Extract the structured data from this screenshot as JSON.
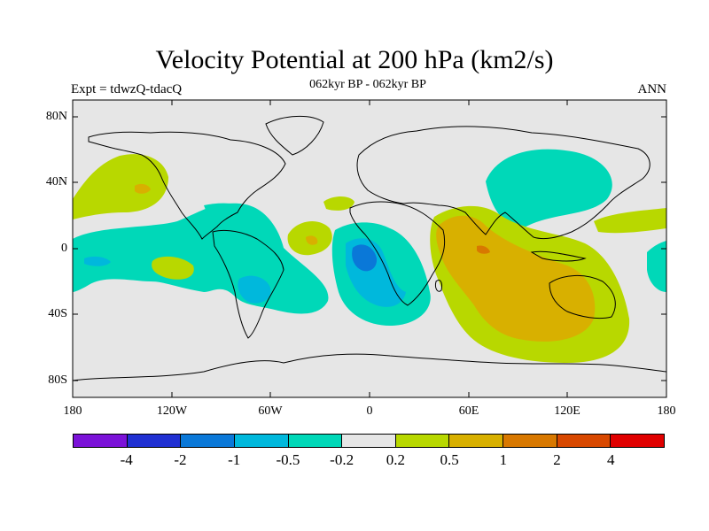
{
  "title": "Velocity Potential at 200 hPa (km2/s)",
  "subtitle": "062kyr BP - 062kyr BP",
  "expt": "Expt = tdwzQ-tdacQ",
  "season": "ANN",
  "lat_ticks": [
    "80N",
    "40N",
    "0",
    "40S",
    "80S"
  ],
  "lon_ticks": [
    "180",
    "120W",
    "60W",
    "0",
    "60E",
    "120E",
    "180"
  ],
  "colorbar": {
    "colors": [
      "#7b12d8",
      "#2030d2",
      "#0a78d8",
      "#00b8dc",
      "#00d8b8",
      "#e6e6e6",
      "#b8d800",
      "#d8b000",
      "#d87800",
      "#d84800",
      "#e00000"
    ],
    "labels": [
      "-4",
      "-2",
      "-1",
      "-0.5",
      "-0.2",
      "0.2",
      "0.5",
      "1",
      "2",
      "4"
    ]
  },
  "fills": {
    "background": "#e6e6e6",
    "neg_02": "#00d8b8",
    "neg_05": "#00b8dc",
    "neg_1": "#0a78d8",
    "pos_02": "#b8d800",
    "pos_05": "#d8b000",
    "pos_1": "#d87800"
  }
}
